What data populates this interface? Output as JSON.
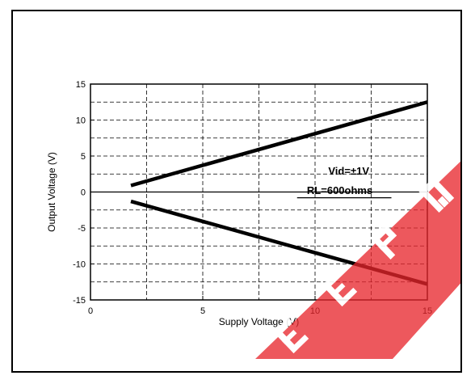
{
  "chart_data": {
    "type": "line",
    "title": "",
    "xlabel": "Supply Voltage (V)",
    "ylabel": "Output Voltage (V)",
    "xlim": [
      0,
      15
    ],
    "ylim": [
      -15,
      15
    ],
    "x_ticks": [
      "0",
      "5",
      "10",
      "15"
    ],
    "y_ticks": [
      "15",
      "10",
      "5",
      "0",
      "-5",
      "-10",
      "-15"
    ],
    "grid": true,
    "annotations": [
      "Vid=±1V",
      "RL=600ohms"
    ],
    "series": [
      {
        "x": [
          1.8,
          15
        ],
        "y": [
          0.9,
          12.5
        ]
      },
      {
        "x": [
          1.8,
          15
        ],
        "y": [
          -1.3,
          -12.8
        ]
      }
    ]
  },
  "watermark": {
    "text": "EEPW",
    "color": "#e8262b"
  }
}
